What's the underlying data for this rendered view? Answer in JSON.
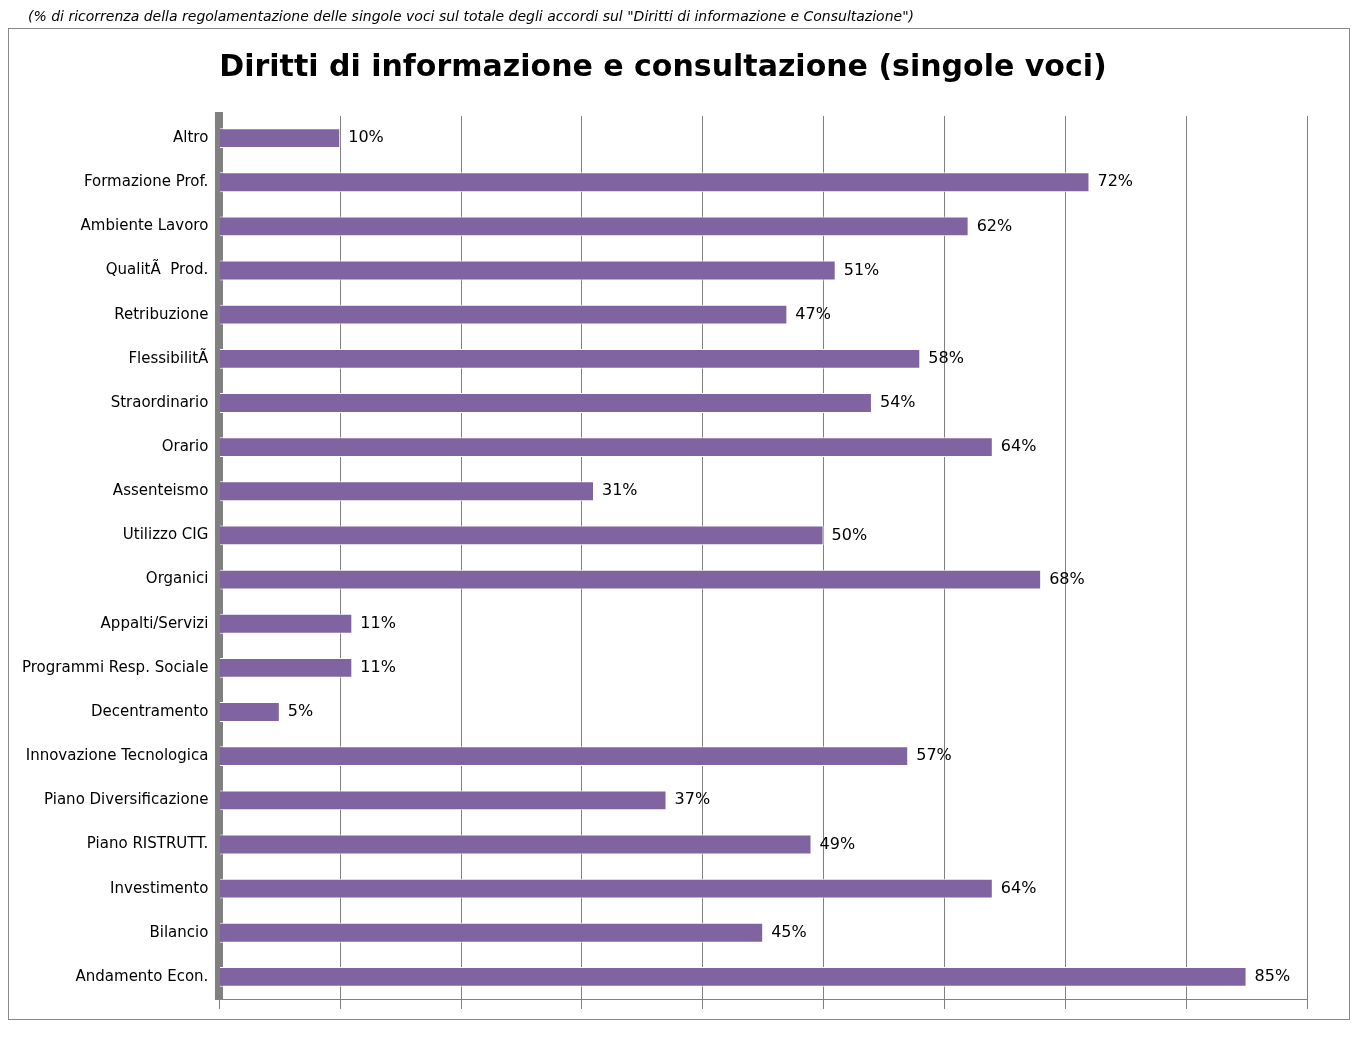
{
  "chart_data": {
    "type": "bar",
    "orientation": "horizontal",
    "title": "Diritti di informazione e consultazione (singole voci)",
    "subtitle": "(% di ricorrenza della regolamentazione delle singole voci sul totale degli accordi sul \"Diritti di informazione e Consultazione\")",
    "categories": [
      "Altro",
      "Formazione Prof.",
      "Ambiente Lavoro",
      "QualitÃ  Prod.",
      "Retribuzione",
      "FlessibilitÃ",
      "Straordinario",
      "Orario",
      "Assenteismo",
      "Utilizzo CIG",
      "Organici",
      "Appalti/Servizi",
      "Programmi Resp. Sociale",
      "Decentramento",
      "Innovazione Tecnologica",
      "Piano Diversificazione",
      "Piano RISTRUTT.",
      "Investimento",
      "Bilancio",
      "Andamento Econ."
    ],
    "values": [
      10,
      72,
      62,
      51,
      47,
      58,
      54,
      64,
      31,
      50,
      68,
      11,
      11,
      5,
      57,
      37,
      49,
      64,
      45,
      85
    ],
    "value_labels": [
      "10%",
      "72%",
      "62%",
      "51%",
      "47%",
      "58%",
      "54%",
      "64%",
      "31%",
      "50%",
      "68%",
      "11%",
      "11%",
      "5%",
      "57%",
      "37%",
      "49%",
      "64%",
      "45%",
      "85%"
    ],
    "color": "#8064a2",
    "xlim": [
      0,
      90
    ],
    "xticks": [
      {
        "value": 0,
        "label": null
      },
      {
        "value": 10,
        "label": null
      },
      {
        "value": 20,
        "label": null
      },
      {
        "value": 30,
        "label": null
      },
      {
        "value": 40,
        "label": null
      },
      {
        "value": 50,
        "label": null
      },
      {
        "value": 60,
        "label": null
      },
      {
        "value": 70,
        "label": null
      },
      {
        "value": 80,
        "label": null
      },
      {
        "value": 90,
        "label": null
      }
    ],
    "grid": "x",
    "legend": false,
    "tick_labels": "y"
  }
}
